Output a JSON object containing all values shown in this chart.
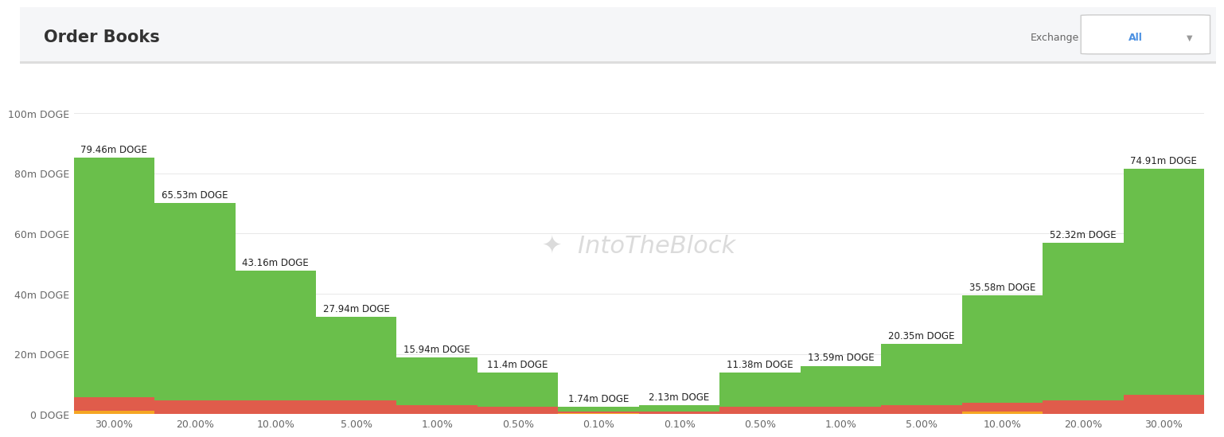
{
  "title": "Order Books",
  "watermark": "⧈  IntoTheBlock",
  "x_labels": [
    "30.00%",
    "20.00%",
    "10.00%",
    "5.00%",
    "1.00%",
    "0.50%",
    "0.10%",
    "0.10%",
    "0.50%",
    "1.00%",
    "5.00%",
    "10.00%",
    "20.00%",
    "30.00%"
  ],
  "green_values": [
    79.46,
    65.53,
    43.16,
    27.94,
    15.94,
    11.4,
    1.74,
    2.13,
    11.38,
    13.59,
    20.35,
    35.58,
    52.32,
    74.91
  ],
  "red_values": [
    4.5,
    4.5,
    4.5,
    4.5,
    3.0,
    2.5,
    0.3,
    0.8,
    2.5,
    2.5,
    3.0,
    3.0,
    4.5,
    6.5
  ],
  "orange_values": [
    1.2,
    0.0,
    0.0,
    0.0,
    0.0,
    0.0,
    0.5,
    0.0,
    0.0,
    0.0,
    0.0,
    0.8,
    0.0,
    0.0
  ],
  "bar_labels": [
    "79.46m DOGE",
    "65.53m DOGE",
    "43.16m DOGE",
    "27.94m DOGE",
    "15.94m DOGE",
    "11.4m DOGE",
    "1.74m DOGE",
    "2.13m DOGE",
    "11.38m DOGE",
    "13.59m DOGE",
    "20.35m DOGE",
    "35.58m DOGE",
    "52.32m DOGE",
    "74.91m DOGE"
  ],
  "ytick_labels": [
    "0 DOGE",
    "20m DOGE",
    "40m DOGE",
    "60m DOGE",
    "80m DOGE",
    "100m DOGE"
  ],
  "ytick_values": [
    0,
    20,
    40,
    60,
    80,
    100
  ],
  "ylim": [
    0,
    108
  ],
  "green_color": "#6abf4b",
  "red_color": "#e05c4b",
  "orange_color": "#f5a623",
  "background_color": "#ffffff",
  "grid_color": "#e8e8e8",
  "title_fontsize": 15,
  "label_fontsize": 8.5,
  "tick_fontsize": 9
}
